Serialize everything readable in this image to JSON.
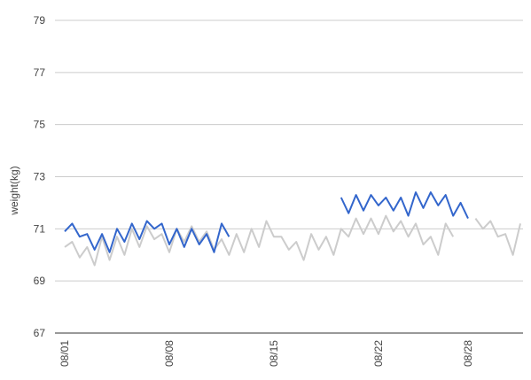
{
  "chart_data": {
    "type": "line",
    "y_label": "weight(kg)",
    "categories": [
      "08/01",
      null,
      null,
      null,
      null,
      null,
      null,
      null,
      null,
      null,
      null,
      null,
      null,
      null,
      "08/08",
      null,
      null,
      null,
      null,
      null,
      null,
      null,
      null,
      null,
      null,
      null,
      null,
      null,
      "08/15",
      null,
      null,
      null,
      null,
      null,
      null,
      null,
      null,
      null,
      null,
      null,
      null,
      null,
      "08/22",
      null,
      null,
      null,
      null,
      null,
      null,
      null,
      null,
      null,
      null,
      null,
      "08/28",
      null,
      null,
      null,
      null,
      null,
      null,
      null
    ],
    "series": [
      {
        "color": "#3366cc",
        "values": [
          70.9,
          71.2,
          70.7,
          70.8,
          70.2,
          70.8,
          70.1,
          71.0,
          70.5,
          71.2,
          70.6,
          71.3,
          71.0,
          71.2,
          70.4,
          71.0,
          70.3,
          71.0,
          70.4,
          70.8,
          70.1,
          71.2,
          70.7,
          null,
          null,
          null,
          null,
          null,
          null,
          null,
          null,
          null,
          null,
          null,
          null,
          null,
          null,
          72.2,
          71.6,
          72.3,
          71.7,
          72.3,
          71.9,
          72.2,
          71.7,
          72.2,
          71.5,
          72.4,
          71.8,
          72.4,
          71.9,
          72.3,
          71.5,
          72.0,
          71.4,
          null,
          null,
          null,
          null,
          null,
          null,
          null
        ]
      },
      {
        "color": "#cccccc",
        "values": [
          70.3,
          70.5,
          69.9,
          70.3,
          69.6,
          70.7,
          69.8,
          70.7,
          70.0,
          71.0,
          70.3,
          71.1,
          70.6,
          70.8,
          70.1,
          71.0,
          70.5,
          71.1,
          70.5,
          70.9,
          70.2,
          70.6,
          70.0,
          70.8,
          70.1,
          71.0,
          70.3,
          71.3,
          70.7,
          70.7,
          70.2,
          70.5,
          69.8,
          70.8,
          70.2,
          70.7,
          70.0,
          71.0,
          70.7,
          71.4,
          70.8,
          71.4,
          70.8,
          71.5,
          70.9,
          71.3,
          70.7,
          71.2,
          70.4,
          70.7,
          70.0,
          71.2,
          70.7,
          null,
          null,
          71.4,
          71.0,
          71.3,
          70.7,
          70.8,
          70.0,
          71.2
        ]
      }
    ],
    "ylim": [
      67,
      79
    ],
    "yticks": [
      67,
      69,
      71,
      73,
      75,
      77,
      79
    ],
    "grid": true
  }
}
